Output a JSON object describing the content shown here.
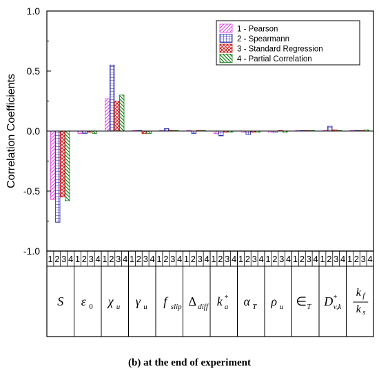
{
  "chart_data": {
    "type": "bar",
    "title": "",
    "ylabel": "Correlation Coefficients",
    "xlabel": "",
    "ylim": [
      -1.0,
      1.0
    ],
    "yticks": [
      "-1.0",
      "-0.5",
      "0.0",
      "0.5",
      "1.0"
    ],
    "legend_position": "top-right",
    "sub_labels": [
      "1",
      "2",
      "3",
      "4"
    ],
    "categories": [
      "S",
      "ε0",
      "χu",
      "γu",
      "fslip",
      "Δdiff",
      "k*a",
      "αT",
      "ρu",
      "∈T",
      "D*v,k",
      "kf/ks"
    ],
    "series": [
      {
        "name": "1 - Pearson",
        "color": "#e040e0",
        "pattern": "diag-right",
        "values": [
          -0.57,
          -0.02,
          0.27,
          0.0,
          0.0,
          0.0,
          -0.02,
          -0.01,
          -0.01,
          0.0,
          0.0,
          0.0
        ]
      },
      {
        "name": "2 - Spearmann",
        "color": "#2020b0",
        "pattern": "grid",
        "values": [
          -0.76,
          -0.02,
          0.55,
          0.0,
          0.02,
          -0.02,
          -0.04,
          -0.03,
          -0.01,
          0.0,
          0.04,
          0.0
        ]
      },
      {
        "name": "3 - Standard Regression",
        "color": "#cc1010",
        "pattern": "cross",
        "values": [
          -0.55,
          -0.01,
          0.25,
          -0.02,
          0.0,
          0.0,
          -0.01,
          -0.01,
          0.0,
          0.0,
          0.01,
          0.0
        ]
      },
      {
        "name": "4 - Partial Correlation",
        "color": "#108010",
        "pattern": "diag-left",
        "values": [
          -0.58,
          -0.02,
          0.3,
          -0.02,
          0.0,
          0.0,
          -0.01,
          -0.01,
          -0.01,
          0.0,
          0.0,
          0.01
        ]
      }
    ]
  },
  "caption": {
    "prefix": "(",
    "letter": "b",
    "text": ") at the end of experiment"
  }
}
